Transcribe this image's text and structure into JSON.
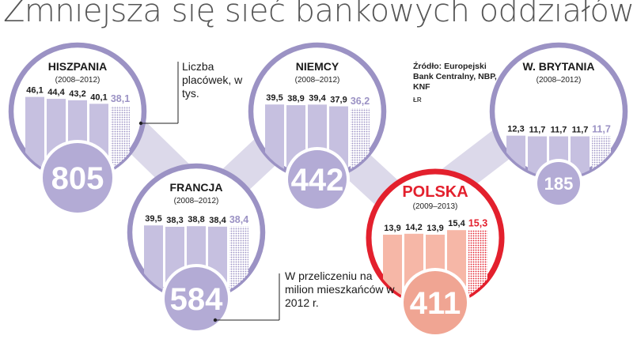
{
  "headline": "Zmniejsza się sieć bankowych oddziałów",
  "notes": {
    "unit": "Liczba placówek, w tys.",
    "per_capita": "W przeliczeniu na milion mieszkańców w 2012 r.",
    "source": "Źródło: Europejski Bank Centralny, NBP, KNF",
    "credit": "ŁR"
  },
  "colors": {
    "ring": "#9b92c4",
    "ring_poland": "#e3202d",
    "bar": "#c6c0e0",
    "bar_poland": "#f6b7a7",
    "big_circle": "#b3abd5",
    "big_circle_poland": "#f0a593",
    "connector": "#dcd9ea"
  },
  "chart_data": [
    {
      "type": "bar",
      "title": "Hiszpania",
      "period": "(2008–2012)",
      "values": [
        46.1,
        44.4,
        43.2,
        40.1,
        38.1
      ],
      "labels": [
        "46,1",
        "44,4",
        "43,2",
        "40,1",
        "38,1"
      ],
      "last_bar_dotted": true,
      "branches_per_million": "805",
      "highlight": false
    },
    {
      "type": "bar",
      "title": "Francja",
      "period": "(2008–2012)",
      "values": [
        39.5,
        38.3,
        38.8,
        38.4,
        38.4
      ],
      "labels": [
        "39,5",
        "38,3",
        "38,8",
        "38,4",
        "38,4"
      ],
      "last_bar_dotted": true,
      "branches_per_million": "584",
      "highlight": false
    },
    {
      "type": "bar",
      "title": "Niemcy",
      "period": "(2008–2012)",
      "values": [
        39.5,
        38.9,
        39.4,
        37.9,
        36.2
      ],
      "labels": [
        "39,5",
        "38,9",
        "39,4",
        "37,9",
        "36,2"
      ],
      "last_bar_dotted": true,
      "branches_per_million": "442",
      "highlight": false
    },
    {
      "type": "bar",
      "title": "Polska",
      "period": "(2009–2013)",
      "values": [
        13.9,
        14.2,
        13.9,
        15.4,
        15.3
      ],
      "labels": [
        "13,9",
        "14,2",
        "13,9",
        "15,4",
        "15,3"
      ],
      "last_bar_dotted": true,
      "branches_per_million": "411",
      "highlight": true
    },
    {
      "type": "bar",
      "title": "W. Brytania",
      "period": "(2008–2012)",
      "values": [
        12.3,
        11.7,
        11.7,
        11.7,
        11.7
      ],
      "labels": [
        "12,3",
        "11,7",
        "11,7",
        "11,7",
        "11,7"
      ],
      "last_bar_dotted": true,
      "branches_per_million": "185",
      "highlight": false
    }
  ]
}
